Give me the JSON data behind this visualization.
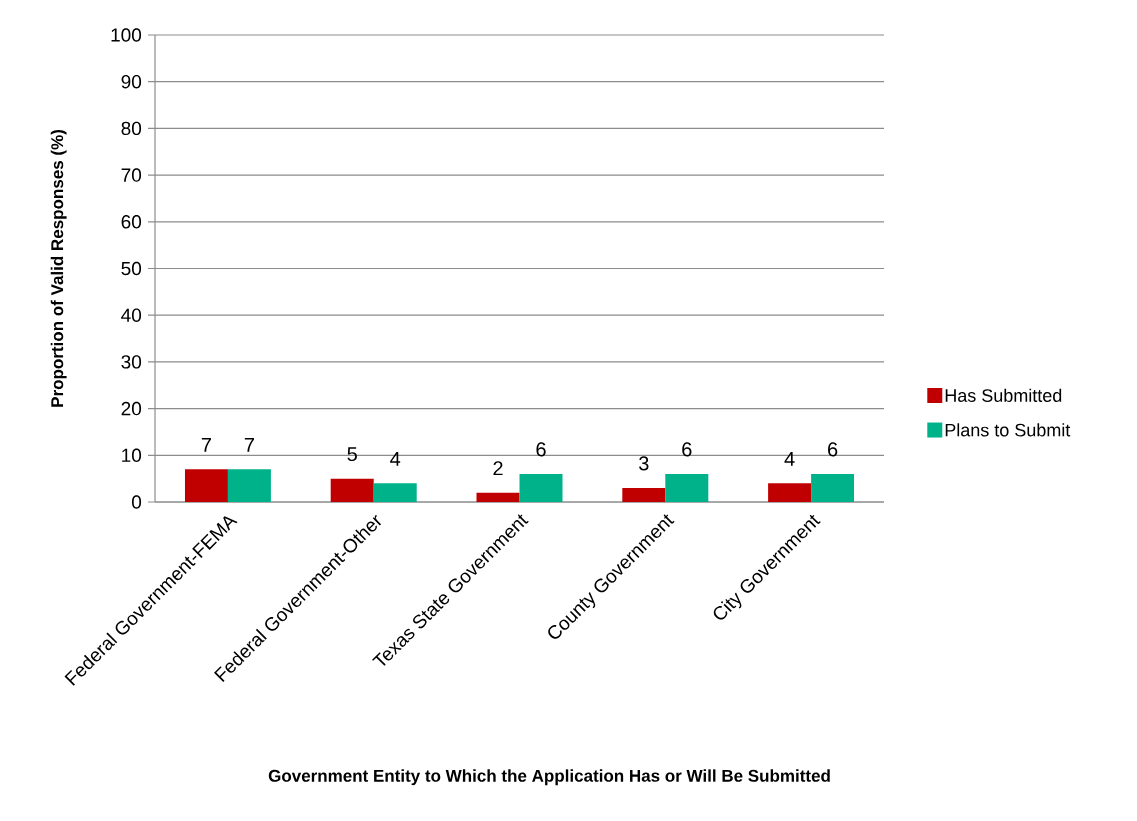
{
  "chart_data": {
    "type": "bar",
    "xlabel": "Government Entity to Which the Application Has or Will Be Submitted",
    "ylabel": "Proportion of Valid Responses (%)",
    "categories": [
      "Federal Government-FEMA",
      "Federal Government-Other",
      "Texas State Government",
      "County Government",
      "City Government"
    ],
    "series": [
      {
        "name": "Has Submitted",
        "color": "#c00000",
        "values": [
          7,
          5,
          2,
          3,
          4
        ]
      },
      {
        "name": "Plans to Submit",
        "color": "#00b28a",
        "values": [
          7,
          4,
          6,
          6,
          6
        ]
      }
    ],
    "ylim": [
      0,
      100
    ],
    "yticks": [
      0,
      10,
      20,
      30,
      40,
      50,
      60,
      70,
      80,
      90,
      100
    ],
    "grid": "y",
    "legend": "right",
    "data_labels": true
  }
}
